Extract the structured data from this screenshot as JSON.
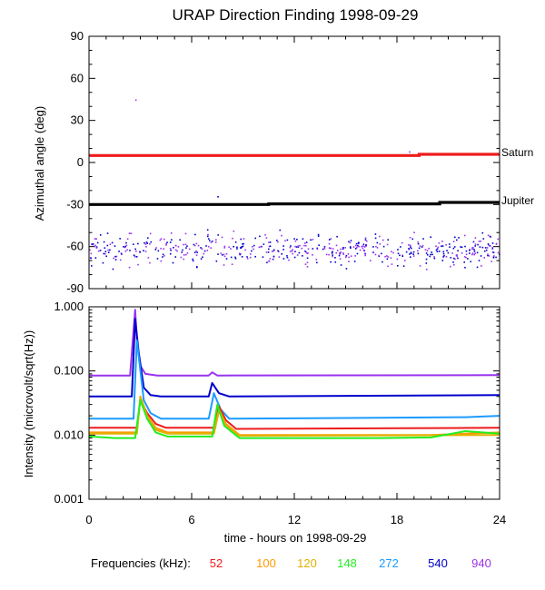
{
  "title": "URAP Direction Finding  1998-09-29",
  "xaxis": {
    "label": "time - hours on 1998-09-29",
    "range": [
      0,
      24
    ],
    "ticks": [
      0,
      6,
      12,
      18,
      24
    ],
    "tick_labels": [
      "0",
      "6",
      "12",
      "18",
      "24"
    ]
  },
  "legend": {
    "prefix": "Frequencies (kHz):",
    "items": [
      {
        "label": "52",
        "color": "#ee1c1c"
      },
      {
        "label": "100",
        "color": "#ff9900"
      },
      {
        "label": "120",
        "color": "#e0b000"
      },
      {
        "label": "148",
        "color": "#22ee22"
      },
      {
        "label": "272",
        "color": "#1c9bff"
      },
      {
        "label": "540",
        "color": "#0000cc"
      },
      {
        "label": "940",
        "color": "#9933ee"
      }
    ]
  },
  "chart_data": [
    {
      "type": "scatter",
      "ylabel": "Azimuthal angle (deg)",
      "xlim": [
        0,
        24
      ],
      "ylim": [
        -90,
        90
      ],
      "yticks": [
        90,
        60,
        30,
        0,
        -30,
        -60,
        -90
      ],
      "ytick_labels": [
        "90",
        "60",
        "30",
        "0",
        "-30",
        "-60",
        "-90"
      ],
      "series": [
        {
          "name": "Saturn",
          "color": "#ee1c1c",
          "x": [
            0,
            19.3,
            19.3,
            24
          ],
          "y": [
            5,
            5,
            5.8,
            5.8
          ]
        },
        {
          "name": "Jupiter",
          "color": "#000000",
          "x": [
            0,
            10.5,
            10.5,
            20.5,
            20.5,
            24
          ],
          "y": [
            -30,
            -30,
            -29.5,
            -29.5,
            -28.5,
            -28.5
          ]
        }
      ],
      "scatter": {
        "colors": [
          "#0000cc",
          "#9933ee"
        ],
        "x_range": [
          0,
          24
        ],
        "y_range": [
          -80,
          -47
        ],
        "y_center": -62
      },
      "annotations": [
        {
          "text": "Saturn",
          "x": 24,
          "y": 5.8
        },
        {
          "text": "Jupiter",
          "x": 24,
          "y": -28.5
        }
      ]
    },
    {
      "type": "line",
      "ylabel": "Intensity (microvolt/sqrt(Hz))",
      "xlim": [
        0,
        24
      ],
      "ylim": [
        0.001,
        1.0
      ],
      "yscale": "log",
      "yticks": [
        1.0,
        0.1,
        0.01,
        0.001
      ],
      "ytick_labels": [
        "1.000",
        "0.100",
        "0.010",
        "0.001"
      ],
      "series": [
        {
          "name": "940",
          "color": "#9933ee",
          "x": [
            0,
            2.4,
            2.7,
            2.8,
            3.0,
            3.3,
            4,
            7.0,
            7.2,
            7.5,
            24
          ],
          "y": [
            0.085,
            0.085,
            0.9,
            0.3,
            0.12,
            0.09,
            0.085,
            0.085,
            0.095,
            0.085,
            0.086
          ]
        },
        {
          "name": "540",
          "color": "#0000cc",
          "x": [
            0,
            2.5,
            2.7,
            2.9,
            3.2,
            3.6,
            4.2,
            7.0,
            7.2,
            7.6,
            8.2,
            24
          ],
          "y": [
            0.04,
            0.04,
            0.65,
            0.2,
            0.055,
            0.042,
            0.04,
            0.04,
            0.065,
            0.045,
            0.04,
            0.042
          ]
        },
        {
          "name": "272",
          "color": "#1c9bff",
          "x": [
            0,
            2.6,
            2.8,
            3.2,
            3.6,
            4.2,
            7.0,
            7.3,
            7.7,
            8.2,
            22,
            24
          ],
          "y": [
            0.018,
            0.018,
            0.3,
            0.035,
            0.022,
            0.018,
            0.018,
            0.045,
            0.025,
            0.018,
            0.019,
            0.02
          ]
        },
        {
          "name": "52",
          "color": "#ee1c1c",
          "x": [
            0,
            2.8,
            3.0,
            3.4,
            3.9,
            4.5,
            7.3,
            7.6,
            8.0,
            8.6,
            24
          ],
          "y": [
            0.013,
            0.013,
            0.035,
            0.022,
            0.015,
            0.013,
            0.013,
            0.028,
            0.017,
            0.0125,
            0.013
          ]
        },
        {
          "name": "100",
          "color": "#ff9900",
          "x": [
            0,
            2.8,
            3.0,
            3.4,
            3.9,
            4.6,
            7.3,
            7.6,
            8.0,
            8.8,
            17,
            20,
            22,
            24
          ],
          "y": [
            0.011,
            0.011,
            0.04,
            0.02,
            0.013,
            0.011,
            0.011,
            0.025,
            0.015,
            0.01,
            0.01,
            0.01,
            0.0105,
            0.011
          ]
        },
        {
          "name": "120",
          "color": "#e0b000",
          "x": [
            0,
            2.8,
            3.0,
            3.4,
            3.9,
            4.6,
            7.3,
            7.6,
            8.0,
            8.8,
            24
          ],
          "y": [
            0.0105,
            0.0105,
            0.038,
            0.019,
            0.012,
            0.0105,
            0.0105,
            0.024,
            0.014,
            0.0098,
            0.01
          ]
        },
        {
          "name": "148",
          "color": "#22ee22",
          "x": [
            0,
            1.5,
            2.7,
            3.0,
            3.4,
            3.9,
            4.6,
            7.2,
            7.5,
            7.9,
            8.8,
            17,
            20,
            22,
            24
          ],
          "y": [
            0.0095,
            0.009,
            0.009,
            0.035,
            0.018,
            0.011,
            0.0095,
            0.0095,
            0.03,
            0.014,
            0.009,
            0.009,
            0.0092,
            0.0115,
            0.0105
          ]
        }
      ]
    }
  ]
}
